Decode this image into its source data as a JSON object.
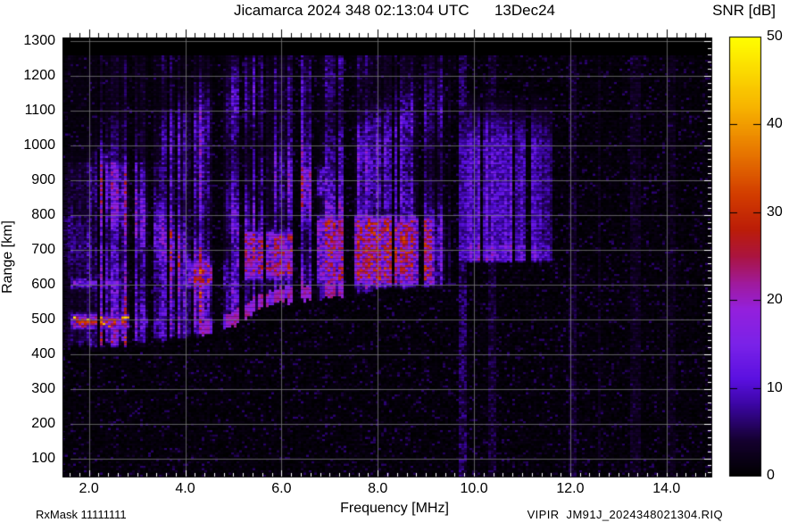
{
  "header": {
    "title": "Jicamarca 2024 348 02:13:04 UTC      13Dec24"
  },
  "footer": {
    "rx_mask": "RxMask 11111111",
    "file_ref": "VIPIR  JM91J_2024348021304.RIQ"
  },
  "chart_data": {
    "type": "heatmap",
    "title": "Jicamarca 2024 348 02:13:04 UTC",
    "date_label": "13Dec24",
    "station": "Jicamarca",
    "xlabel": "Frequency [MHz]",
    "ylabel": "Range [km]",
    "xlim": [
      1.45,
      14.95
    ],
    "ylim": [
      45,
      1310
    ],
    "x_major_ticks": [
      2,
      4,
      6,
      8,
      10,
      12,
      14
    ],
    "x_tick_labels": [
      "2.0",
      "4.0",
      "6.0",
      "8.0",
      "10.0",
      "12.0",
      "14.0"
    ],
    "x_minor_step": 0.2,
    "y_major_ticks": [
      100,
      200,
      300,
      400,
      500,
      600,
      700,
      800,
      900,
      1000,
      1100,
      1200,
      1300
    ],
    "y_tick_labels": [
      "100",
      "200",
      "300",
      "400",
      "500",
      "600",
      "700",
      "800",
      "900",
      "1000",
      "1100",
      "1200",
      "1300"
    ],
    "y_minor_step": 20,
    "grid": true,
    "grid_color": "#7d7d7d",
    "plot_background": "#000000",
    "frame_color": "#000000",
    "text_color": "#000000",
    "colorbar": {
      "label": "SNR [dB]",
      "min": 0,
      "max": 50,
      "ticks": [
        0,
        10,
        20,
        30,
        40,
        50
      ],
      "tick_labels": [
        "0",
        "10",
        "20",
        "30",
        "40",
        "50"
      ],
      "stops": [
        [
          0.0,
          "#000000"
        ],
        [
          0.08,
          "#14002e"
        ],
        [
          0.16,
          "#3a05a0"
        ],
        [
          0.22,
          "#5a10e0"
        ],
        [
          0.3,
          "#7a22e8"
        ],
        [
          0.38,
          "#9420dc"
        ],
        [
          0.44,
          "#a01a9a"
        ],
        [
          0.5,
          "#aa1440"
        ],
        [
          0.56,
          "#bb1c08"
        ],
        [
          0.64,
          "#d23c00"
        ],
        [
          0.74,
          "#e87800"
        ],
        [
          0.84,
          "#f7b300"
        ],
        [
          1.0,
          "#ffff00"
        ]
      ]
    },
    "signal_model": {
      "max_range_km": 1258,
      "background": {
        "speckle_prob": 0.18,
        "speckle_max_db": 6.5,
        "floor_max_db": 1.7
      },
      "echo": {
        "f_max": 9.5,
        "strength_db": 16,
        "top_km": 1258,
        "top_fade_start_km": 830,
        "bottom_cutoff": [
          [
            1.45,
            420
          ],
          [
            2.6,
            424
          ],
          [
            3.2,
            430
          ],
          [
            4.0,
            444
          ],
          [
            4.6,
            456
          ],
          [
            5.0,
            478
          ],
          [
            5.5,
            525
          ],
          [
            6.0,
            548
          ],
          [
            6.8,
            558
          ],
          [
            7.4,
            566
          ],
          [
            8.0,
            584
          ],
          [
            8.8,
            590
          ],
          [
            9.5,
            598
          ]
        ],
        "freq_gain": [
          [
            1.45,
            0.5
          ],
          [
            1.7,
            0.75
          ],
          [
            2.0,
            0.95
          ],
          [
            2.6,
            0.9
          ],
          [
            3.2,
            0.78
          ],
          [
            3.9,
            0.88
          ],
          [
            4.8,
            1.0
          ],
          [
            5.4,
            1.1
          ],
          [
            6.5,
            1.15
          ],
          [
            8.0,
            1.15
          ],
          [
            9.0,
            1.12
          ],
          [
            9.5,
            1.05
          ]
        ],
        "leading_edge": {
          "f0": 4.3,
          "f1": 7.5,
          "depth_km": 42,
          "snr": 19
        }
      },
      "secondary_layer": {
        "f0": 9.66,
        "f1": 11.62,
        "r0": 662,
        "r1": 1165,
        "strength_db": 11.5,
        "bright_strip_km": 50
      },
      "hot_regions": [
        {
          "f0": 1.55,
          "f1": 2.95,
          "r0": 462,
          "r1": 524,
          "snr": 36,
          "peak": 46
        },
        {
          "f0": 2.95,
          "f1": 3.75,
          "r0": 468,
          "r1": 518,
          "snr": 23
        },
        {
          "f0": 1.55,
          "f1": 2.75,
          "r0": 578,
          "r1": 628,
          "snr": 26
        },
        {
          "f0": 3.9,
          "f1": 4.95,
          "r0": 578,
          "r1": 682,
          "snr": 29
        },
        {
          "f0": 4.95,
          "f1": 6.45,
          "r0": 600,
          "r1": 768,
          "snr": 29
        },
        {
          "f0": 6.5,
          "f1": 9.3,
          "r0": 585,
          "r1": 810,
          "snr": 30
        },
        {
          "f0": 6.28,
          "f1": 7.05,
          "r0": 838,
          "r1": 952,
          "snr": 22
        },
        {
          "f0": 7.65,
          "f1": 9.25,
          "r0": 640,
          "r1": 792,
          "snr": 31
        },
        {
          "f0": 2.0,
          "f1": 2.6,
          "r0": 915,
          "r1": 995,
          "snr": 13
        }
      ],
      "notches": [
        [
          2.2,
          2.25
        ],
        [
          2.83,
          2.96
        ],
        [
          3.22,
          3.33
        ],
        [
          3.62,
          3.67
        ],
        [
          4.1,
          4.14
        ],
        [
          4.58,
          4.78
        ],
        [
          5.14,
          5.26
        ],
        [
          5.63,
          5.69
        ],
        [
          6.24,
          6.42
        ],
        [
          6.65,
          6.71
        ],
        [
          7.28,
          7.54
        ],
        [
          8.28,
          8.35
        ],
        [
          8.87,
          8.94
        ],
        [
          9.5,
          9.66
        ],
        [
          10.14,
          10.2
        ],
        [
          10.78,
          10.85
        ],
        [
          11.1,
          11.17
        ],
        [
          11.62,
          11.8
        ],
        [
          12.28,
          12.36
        ],
        [
          13.0,
          13.05
        ]
      ],
      "faint_columns": [
        [
          9.68,
          9.84,
          6.5
        ],
        [
          10.3,
          10.44,
          5
        ],
        [
          11.95,
          12.12,
          4.5
        ],
        [
          12.55,
          12.62,
          3
        ],
        [
          13.25,
          13.45,
          3.5
        ],
        [
          14.05,
          14.18,
          3
        ]
      ]
    }
  }
}
